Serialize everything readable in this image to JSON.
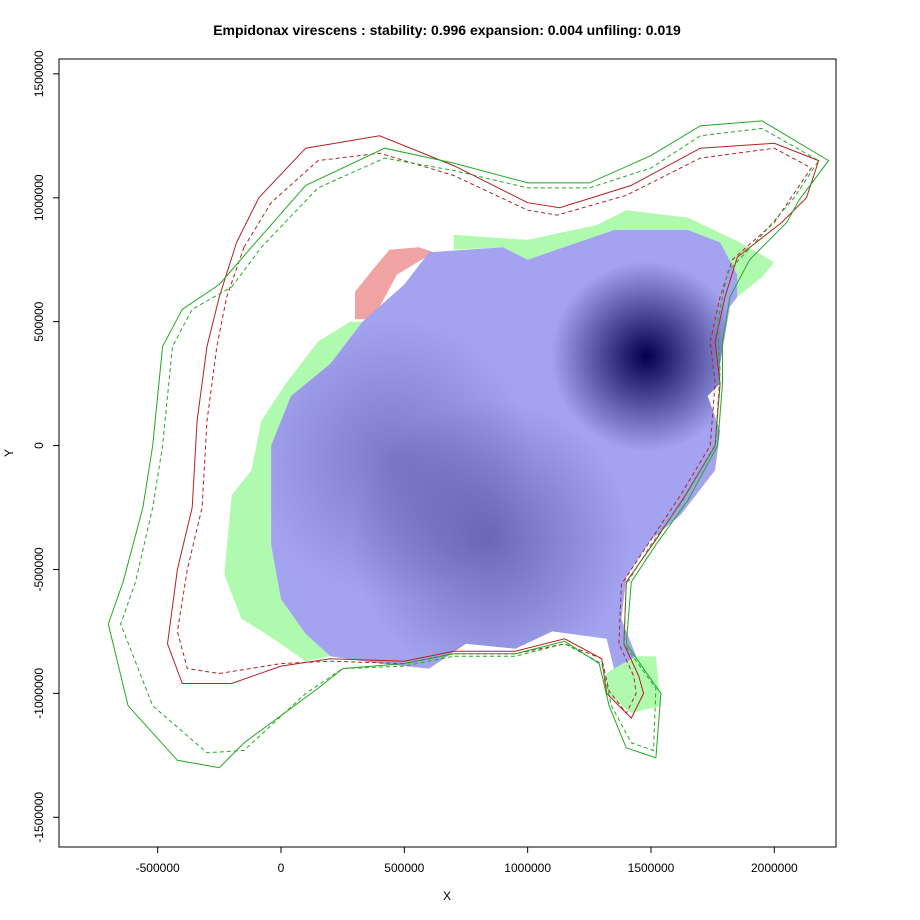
{
  "chart_data": {
    "type": "map",
    "title": "Empidonax virescens : stability: 0.996 expansion: 0.004 unfiling: 0.019",
    "xlabel": "X",
    "ylabel": "Y",
    "xlim": [
      -900000,
      2250000
    ],
    "ylim": [
      -1620000,
      1560000
    ],
    "x_ticks": [
      {
        "value": -500000,
        "label": "-500000"
      },
      {
        "value": 0,
        "label": "0"
      },
      {
        "value": 500000,
        "label": "500000"
      },
      {
        "value": 1000000,
        "label": "1000000"
      },
      {
        "value": 1500000,
        "label": "1500000"
      },
      {
        "value": 2000000,
        "label": "2000000"
      }
    ],
    "y_ticks": [
      {
        "value": -1500000,
        "label": "-1500000"
      },
      {
        "value": -1000000,
        "label": "-1000000"
      },
      {
        "value": -500000,
        "label": "-500000"
      },
      {
        "value": 0,
        "label": "0"
      },
      {
        "value": 500000,
        "label": "500000"
      },
      {
        "value": 1000000,
        "label": "1000000"
      },
      {
        "value": 1500000,
        "label": "1500000"
      }
    ],
    "colors": {
      "stability": "#a3a3f0",
      "density_core": "#00004e",
      "expansion": "#f0a3a3",
      "unfilling": "#b0fab0",
      "contour_native": "#b22222",
      "contour_invaded": "#22aa22"
    },
    "density_peaks": [
      {
        "x": 1480000,
        "y": 360000,
        "strength": 1.0
      },
      {
        "x": 850000,
        "y": -380000,
        "strength": 0.35
      },
      {
        "x": 450000,
        "y": -50000,
        "strength": 0.25
      }
    ],
    "regions": {
      "stability": [
        [
          600,
          780
        ],
        [
          900,
          800
        ],
        [
          1000,
          750
        ],
        [
          1350,
          870
        ],
        [
          1650,
          870
        ],
        [
          1780,
          820
        ],
        [
          1850,
          690
        ],
        [
          1850,
          600
        ],
        [
          1820,
          560
        ],
        [
          1800,
          450
        ],
        [
          1780,
          330
        ],
        [
          1780,
          250
        ],
        [
          1730,
          200
        ],
        [
          1780,
          60
        ],
        [
          1760,
          -100
        ],
        [
          1620,
          -280
        ],
        [
          1500,
          -380
        ],
        [
          1400,
          -530
        ],
        [
          1380,
          -700
        ],
        [
          1440,
          -850
        ],
        [
          1350,
          -900
        ],
        [
          1320,
          -780
        ],
        [
          1100,
          -750
        ],
        [
          950,
          -820
        ],
        [
          750,
          -800
        ],
        [
          600,
          -900
        ],
        [
          400,
          -880
        ],
        [
          200,
          -850
        ],
        [
          100,
          -760
        ],
        [
          0,
          -620
        ],
        [
          -40,
          -400
        ],
        [
          -40,
          0
        ],
        [
          40,
          200
        ],
        [
          200,
          330
        ],
        [
          330,
          500
        ],
        [
          500,
          650
        ]
      ],
      "unfilling_west": [
        [
          200,
          330
        ],
        [
          330,
          500
        ],
        [
          280,
          500
        ],
        [
          150,
          420
        ],
        [
          20,
          250
        ],
        [
          -80,
          100
        ],
        [
          -120,
          -100
        ],
        [
          -200,
          -200
        ],
        [
          -230,
          -520
        ],
        [
          -160,
          -700
        ],
        [
          -60,
          -760
        ],
        [
          100,
          -870
        ],
        [
          200,
          -850
        ],
        [
          100,
          -760
        ],
        [
          0,
          -620
        ],
        [
          -40,
          -400
        ],
        [
          -40,
          0
        ],
        [
          40,
          200
        ]
      ],
      "unfilling_north": [
        [
          700,
          850
        ],
        [
          1000,
          830
        ],
        [
          1280,
          890
        ],
        [
          1400,
          950
        ],
        [
          1650,
          920
        ],
        [
          1860,
          820
        ],
        [
          2000,
          740
        ],
        [
          1950,
          680
        ],
        [
          1850,
          600
        ],
        [
          1850,
          690
        ],
        [
          1780,
          820
        ],
        [
          1650,
          870
        ],
        [
          1350,
          870
        ],
        [
          1000,
          750
        ],
        [
          900,
          800
        ],
        [
          700,
          790
        ]
      ],
      "unfilling_south": [
        [
          1320,
          -920
        ],
        [
          1420,
          -850
        ],
        [
          1520,
          -850
        ],
        [
          1540,
          -1050
        ],
        [
          1420,
          -1080
        ],
        [
          1320,
          -1000
        ]
      ],
      "expansion": [
        [
          300,
          510
        ],
        [
          300,
          620
        ],
        [
          380,
          720
        ],
        [
          440,
          790
        ],
        [
          560,
          800
        ],
        [
          620,
          780
        ],
        [
          470,
          690
        ],
        [
          400,
          560
        ],
        [
          350,
          510
        ]
      ]
    },
    "contours": [
      {
        "name": "native_outer",
        "color": "#b22222",
        "dash": false,
        "points": [
          [
            -180,
            820
          ],
          [
            -90,
            1000
          ],
          [
            100,
            1200
          ],
          [
            400,
            1250
          ],
          [
            700,
            1130
          ],
          [
            1000,
            980
          ],
          [
            1130,
            960
          ],
          [
            1420,
            1050
          ],
          [
            1700,
            1200
          ],
          [
            2000,
            1220
          ],
          [
            2180,
            1150
          ],
          [
            2130,
            1000
          ],
          [
            2030,
            900
          ],
          [
            1850,
            760
          ],
          [
            1800,
            600
          ],
          [
            1760,
            420
          ],
          [
            1780,
            250
          ],
          [
            1760,
            0
          ],
          [
            1640,
            -200
          ],
          [
            1520,
            -380
          ],
          [
            1400,
            -550
          ],
          [
            1390,
            -800
          ],
          [
            1450,
            -930
          ],
          [
            1470,
            -1000
          ],
          [
            1420,
            -1100
          ],
          [
            1320,
            -1000
          ],
          [
            1300,
            -860
          ],
          [
            1150,
            -780
          ],
          [
            950,
            -830
          ],
          [
            700,
            -830
          ],
          [
            500,
            -870
          ],
          [
            200,
            -860
          ],
          [
            0,
            -890
          ],
          [
            -200,
            -960
          ],
          [
            -400,
            -960
          ],
          [
            -460,
            -800
          ],
          [
            -420,
            -500
          ],
          [
            -360,
            -250
          ],
          [
            -340,
            100
          ],
          [
            -300,
            400
          ],
          [
            -250,
            600
          ]
        ]
      },
      {
        "name": "native_inner",
        "color": "#b22222",
        "dash": true,
        "points": [
          [
            -150,
            800
          ],
          [
            -40,
            980
          ],
          [
            150,
            1150
          ],
          [
            400,
            1180
          ],
          [
            700,
            1090
          ],
          [
            1000,
            950
          ],
          [
            1120,
            930
          ],
          [
            1400,
            1010
          ],
          [
            1700,
            1160
          ],
          [
            2000,
            1200
          ],
          [
            2150,
            1120
          ],
          [
            2000,
            900
          ],
          [
            1830,
            750
          ],
          [
            1780,
            600
          ],
          [
            1740,
            420
          ],
          [
            1760,
            250
          ],
          [
            1740,
            0
          ],
          [
            1620,
            -200
          ],
          [
            1500,
            -380
          ],
          [
            1380,
            -560
          ],
          [
            1370,
            -800
          ],
          [
            1430,
            -930
          ],
          [
            1440,
            -1000
          ],
          [
            1400,
            -1080
          ],
          [
            1330,
            -990
          ],
          [
            1300,
            -860
          ],
          [
            1150,
            -800
          ],
          [
            950,
            -840
          ],
          [
            700,
            -840
          ],
          [
            500,
            -880
          ],
          [
            200,
            -870
          ],
          [
            0,
            -880
          ],
          [
            -250,
            -920
          ],
          [
            -380,
            -900
          ],
          [
            -420,
            -750
          ],
          [
            -380,
            -500
          ],
          [
            -320,
            -250
          ],
          [
            -300,
            100
          ],
          [
            -260,
            400
          ],
          [
            -220,
            600
          ]
        ]
      },
      {
        "name": "invaded_outer",
        "color": "#22aa22",
        "dash": false,
        "points": [
          [
            -250,
            650
          ],
          [
            -120,
            800
          ],
          [
            100,
            1050
          ],
          [
            420,
            1200
          ],
          [
            700,
            1140
          ],
          [
            1000,
            1060
          ],
          [
            1250,
            1060
          ],
          [
            1500,
            1170
          ],
          [
            1700,
            1290
          ],
          [
            1950,
            1310
          ],
          [
            2220,
            1150
          ],
          [
            2100,
            990
          ],
          [
            2050,
            900
          ],
          [
            1900,
            750
          ],
          [
            1820,
            600
          ],
          [
            1790,
            420
          ],
          [
            1790,
            250
          ],
          [
            1770,
            0
          ],
          [
            1650,
            -220
          ],
          [
            1520,
            -400
          ],
          [
            1420,
            -550
          ],
          [
            1400,
            -800
          ],
          [
            1540,
            -1000
          ],
          [
            1520,
            -1260
          ],
          [
            1400,
            -1220
          ],
          [
            1330,
            -1050
          ],
          [
            1290,
            -880
          ],
          [
            1150,
            -790
          ],
          [
            950,
            -840
          ],
          [
            700,
            -840
          ],
          [
            500,
            -880
          ],
          [
            250,
            -900
          ],
          [
            150,
            -980
          ],
          [
            -150,
            -1200
          ],
          [
            -250,
            -1300
          ],
          [
            -420,
            -1270
          ],
          [
            -620,
            -1050
          ],
          [
            -700,
            -720
          ],
          [
            -640,
            -550
          ],
          [
            -560,
            -250
          ],
          [
            -520,
            0
          ],
          [
            -480,
            400
          ],
          [
            -400,
            550
          ]
        ]
      },
      {
        "name": "invaded_inner",
        "color": "#22aa22",
        "dash": true,
        "points": [
          [
            -200,
            640
          ],
          [
            -80,
            800
          ],
          [
            150,
            1040
          ],
          [
            420,
            1160
          ],
          [
            700,
            1110
          ],
          [
            1000,
            1040
          ],
          [
            1250,
            1040
          ],
          [
            1500,
            1120
          ],
          [
            1700,
            1250
          ],
          [
            1950,
            1280
          ],
          [
            2180,
            1150
          ],
          [
            2080,
            1000
          ],
          [
            1950,
            850
          ],
          [
            1810,
            700
          ],
          [
            1770,
            500
          ],
          [
            1780,
            300
          ],
          [
            1760,
            0
          ],
          [
            1630,
            -220
          ],
          [
            1500,
            -400
          ],
          [
            1400,
            -560
          ],
          [
            1390,
            -800
          ],
          [
            1520,
            -980
          ],
          [
            1510,
            -1230
          ],
          [
            1420,
            -1200
          ],
          [
            1340,
            -1050
          ],
          [
            1300,
            -880
          ],
          [
            1150,
            -800
          ],
          [
            950,
            -850
          ],
          [
            700,
            -850
          ],
          [
            500,
            -890
          ],
          [
            250,
            -900
          ],
          [
            100,
            -1000
          ],
          [
            -150,
            -1230
          ],
          [
            -300,
            -1240
          ],
          [
            -520,
            -1050
          ],
          [
            -650,
            -720
          ],
          [
            -590,
            -550
          ],
          [
            -520,
            -250
          ],
          [
            -480,
            0
          ],
          [
            -440,
            400
          ],
          [
            -360,
            550
          ]
        ]
      }
    ]
  }
}
